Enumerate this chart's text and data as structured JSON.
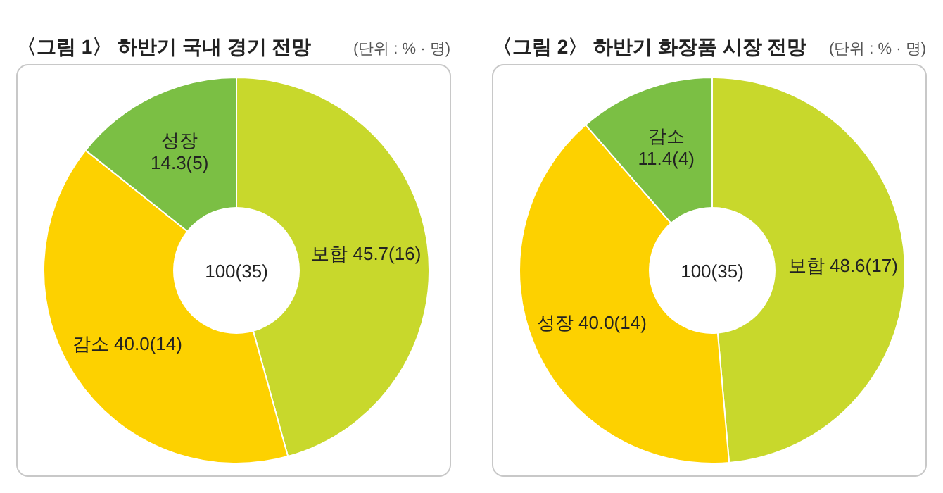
{
  "chart_data": [
    {
      "type": "donut",
      "title": "〈그림 1〉 하반기 국내 경기 전망",
      "subtitle": "(단위 : % · 명)",
      "categories": [
        "보합",
        "감소",
        "성장"
      ],
      "values": [
        45.7,
        40.0,
        14.3
      ],
      "value_labels": [
        "45.7(16)",
        "40.0(14)",
        "14.3(5)"
      ],
      "colors": [
        "#c8d82c",
        "#fdd100",
        "#7bbf44"
      ],
      "annotations": [
        "100(35)"
      ]
    },
    {
      "type": "donut",
      "title": "〈그림 2〉 하반기 화장품 시장 전망",
      "subtitle": "(단위 : % · 명)",
      "categories": [
        "보합",
        "성장",
        "감소"
      ],
      "values": [
        48.6,
        40.0,
        11.4
      ],
      "value_labels": [
        "48.6(17)",
        "40.0(14)",
        "11.4(4)"
      ],
      "colors": [
        "#c8d82c",
        "#fdd100",
        "#7bbf44"
      ],
      "annotations": [
        "100(35)"
      ]
    }
  ]
}
